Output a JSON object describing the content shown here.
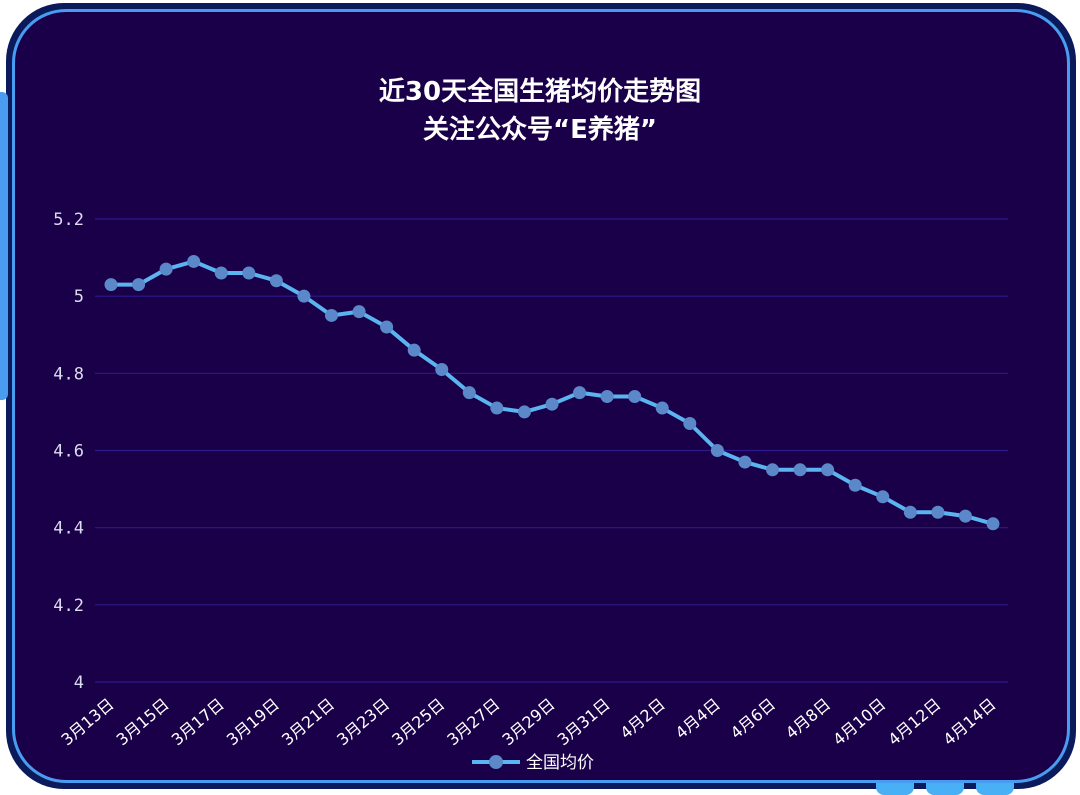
{
  "chart_data": {
    "type": "line",
    "title": "近30天全国生猪均价走势图",
    "subtitle": "关注公众号“E养猪”",
    "xlabel": "",
    "ylabel": "",
    "ylim": [
      4,
      5.2
    ],
    "yticks": [
      "4",
      "4.2",
      "4.4",
      "4.6",
      "4.8",
      "5",
      "5.2"
    ],
    "categories": [
      "3月13日",
      "3月14日",
      "3月15日",
      "3月16日",
      "3月17日",
      "3月18日",
      "3月19日",
      "3月20日",
      "3月21日",
      "3月22日",
      "3月23日",
      "3月24日",
      "3月25日",
      "3月26日",
      "3月27日",
      "3月28日",
      "3月29日",
      "3月30日",
      "3月31日",
      "4月1日",
      "4月2日",
      "4月3日",
      "4月4日",
      "4月5日",
      "4月6日",
      "4月7日",
      "4月8日",
      "4月9日",
      "4月10日",
      "4月11日",
      "4月12日",
      "4月13日",
      "4月14日"
    ],
    "x_label_every": 2,
    "series": [
      {
        "name": "全国均价",
        "color": "#5ab4f0",
        "marker_color": "#5a88c8",
        "values": [
          5.03,
          5.03,
          5.07,
          5.09,
          5.06,
          5.06,
          5.04,
          5.0,
          4.95,
          4.96,
          4.92,
          4.86,
          4.81,
          4.75,
          4.71,
          4.7,
          4.72,
          4.75,
          4.74,
          4.74,
          4.71,
          4.67,
          4.6,
          4.57,
          4.55,
          4.55,
          4.55,
          4.51,
          4.48,
          4.44,
          4.44,
          4.43,
          4.41
        ]
      }
    ],
    "legend": "bottom-center",
    "grid": true
  }
}
